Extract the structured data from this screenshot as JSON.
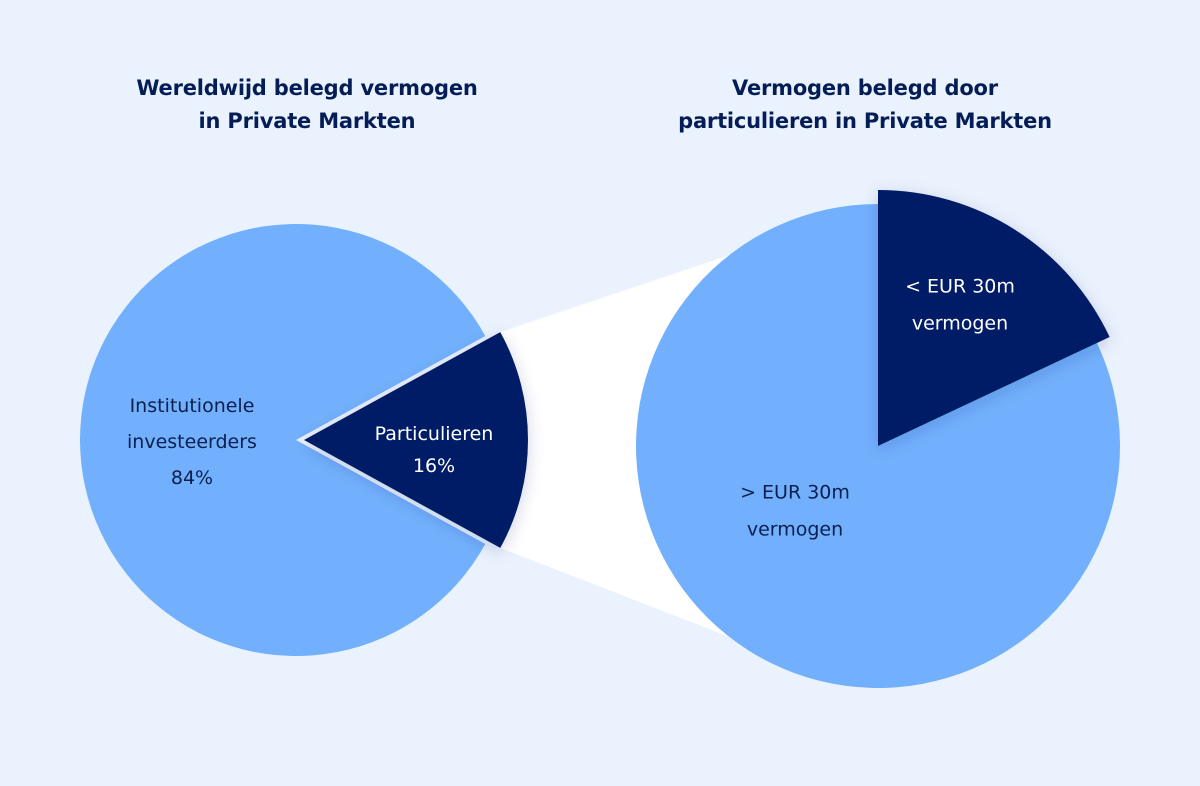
{
  "colors": {
    "background": "#eaf2fd",
    "light": "#72b0fd",
    "dark": "#041e66",
    "connector": "#ffffff",
    "title": "#051d57",
    "label_on_light": "#0a1f4d",
    "label_on_dark": "#ffffff"
  },
  "chart_data": [
    {
      "type": "pie",
      "title_lines": [
        "Wereldwijd belegd vermogen",
        "in Private Markten"
      ],
      "slices": [
        {
          "label_lines": [
            "Institutionele",
            "investeerders",
            "84%"
          ],
          "value": 84,
          "color": "#72b0fd"
        },
        {
          "label_lines": [
            "Particulieren",
            "16%"
          ],
          "value": 16,
          "color": "#041e66",
          "exploded": true
        }
      ]
    },
    {
      "type": "pie",
      "title_lines": [
        "Vermogen belegd door",
        "particulieren in Private Markten"
      ],
      "slices": [
        {
          "label_lines": [
            "< EUR 30m",
            "vermogen"
          ],
          "value": 18,
          "color": "#041e66",
          "exploded": true
        },
        {
          "label_lines": [
            "> EUR 30m",
            "vermogen"
          ],
          "value": 82,
          "color": "#72b0fd"
        }
      ]
    }
  ]
}
